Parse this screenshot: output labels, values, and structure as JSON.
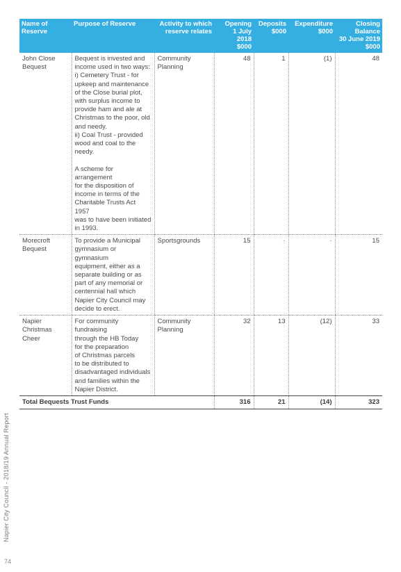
{
  "table": {
    "headers": [
      {
        "text": "Name of\nReserve"
      },
      {
        "text": "Purpose of Reserve"
      },
      {
        "text": "Activity to which\nreserve relates"
      },
      {
        "text": "Opening\n1 July\n2018\n$000"
      },
      {
        "text": "Deposits\n$000"
      },
      {
        "text": "Expenditure\n$000"
      },
      {
        "text": "Closing\nBalance\n30 June 2019\n$000"
      }
    ],
    "rows": [
      {
        "name": "John Close\nBequest",
        "purpose_lines": [
          "Bequest is invested and",
          "income used in two ways:",
          "i) Cemetery Trust - for",
          "upkeep and maintenance",
          "of the Close burial plot,",
          "with surplus income to",
          "provide ham and ale at",
          "Christmas to the poor, old",
          "and needy.",
          "ii) Coal Trust - provided",
          "wood and coal to the",
          "needy.",
          "",
          "A scheme for arrangement",
          "for the disposition of",
          "income in terms of the",
          "Charitable Trusts Act 1957",
          "was to have been initiated",
          "in 1993."
        ],
        "activity": "Community\nPlanning",
        "opening": "48",
        "deposits": "1",
        "expenditure": "(1)",
        "closing": "48"
      },
      {
        "name": "Morecroft\nBequest",
        "purpose_lines": [
          "To provide a Municipal",
          "gymnasium or gymnasium",
          "equipment, either as a",
          "separate building or as",
          "part of any memorial or",
          "centennial hall which",
          "Napier City Council may",
          "decide to erect."
        ],
        "activity": "Sportsgrounds",
        "opening": "15",
        "deposits": "-",
        "expenditure": "-",
        "closing": "15"
      },
      {
        "name": "Napier Christmas\nCheer",
        "purpose_lines": [
          "For community fundraising",
          "through the HB Today",
          "for the preparation",
          "of Christmas parcels",
          "to be distributed to",
          "disadvantaged individuals",
          "and families within the",
          "Napier District."
        ],
        "activity": "Community\nPlanning",
        "opening": "32",
        "deposits": "13",
        "expenditure": "(12)",
        "closing": "33"
      }
    ],
    "total": {
      "label": "Total Bequests Trust Funds",
      "opening": "316",
      "deposits": "21",
      "expenditure": "(14)",
      "closing": "323"
    }
  },
  "footer": {
    "sidebar_text": "Napier City Council - 2018/19 Annual Report",
    "page_number": "74"
  },
  "colors": {
    "header_bg": "#35aee2",
    "header_text": "#ffffff",
    "body_text": "#4a4a4a"
  }
}
